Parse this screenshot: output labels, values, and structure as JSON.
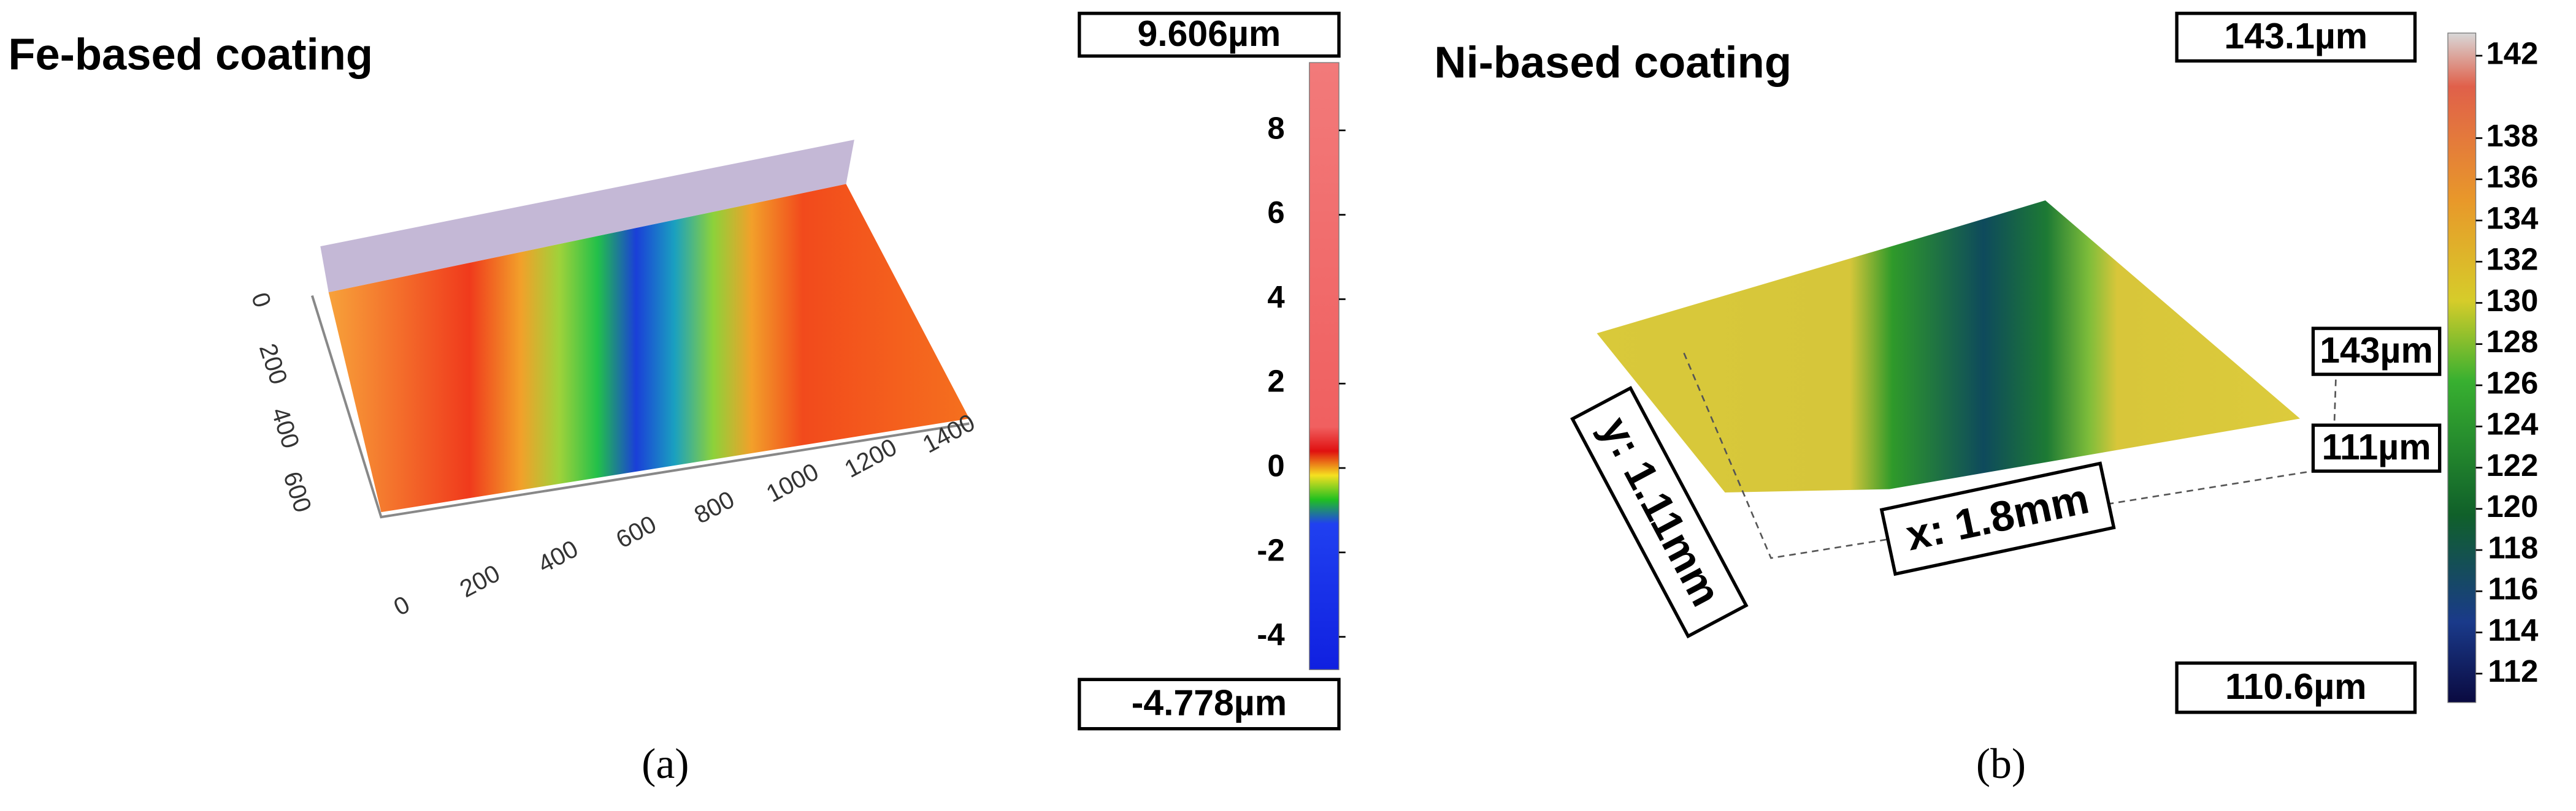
{
  "panels": [
    {
      "title": "Fe-based coating",
      "caption": "(a)",
      "colorbar": {
        "max": {
          "value": 9.606,
          "label": "9.606µm"
        },
        "min": {
          "value": -4.778,
          "label": "-4.778µm"
        },
        "ticks": [
          8,
          6,
          4,
          2,
          0,
          -2,
          -4
        ]
      },
      "x_ticks": [
        0,
        200,
        400,
        600,
        800,
        1000,
        1200,
        1400
      ],
      "y_ticks": [
        0,
        200,
        400,
        600
      ]
    },
    {
      "title": "Ni-based coating",
      "caption": "(b)",
      "colorbar": {
        "max": {
          "value": 143.1,
          "label": "143.1µm"
        },
        "min": {
          "value": 110.6,
          "label": "110.6µm"
        },
        "ticks": [
          142,
          138,
          136,
          134,
          132,
          130,
          128,
          126,
          124,
          122,
          120,
          118,
          116,
          114,
          112
        ]
      },
      "height_labels": [
        "143µm",
        "111µm"
      ],
      "dimension_labels": [
        "y: 1.11mm",
        "x: 1.8mm"
      ]
    }
  ]
}
